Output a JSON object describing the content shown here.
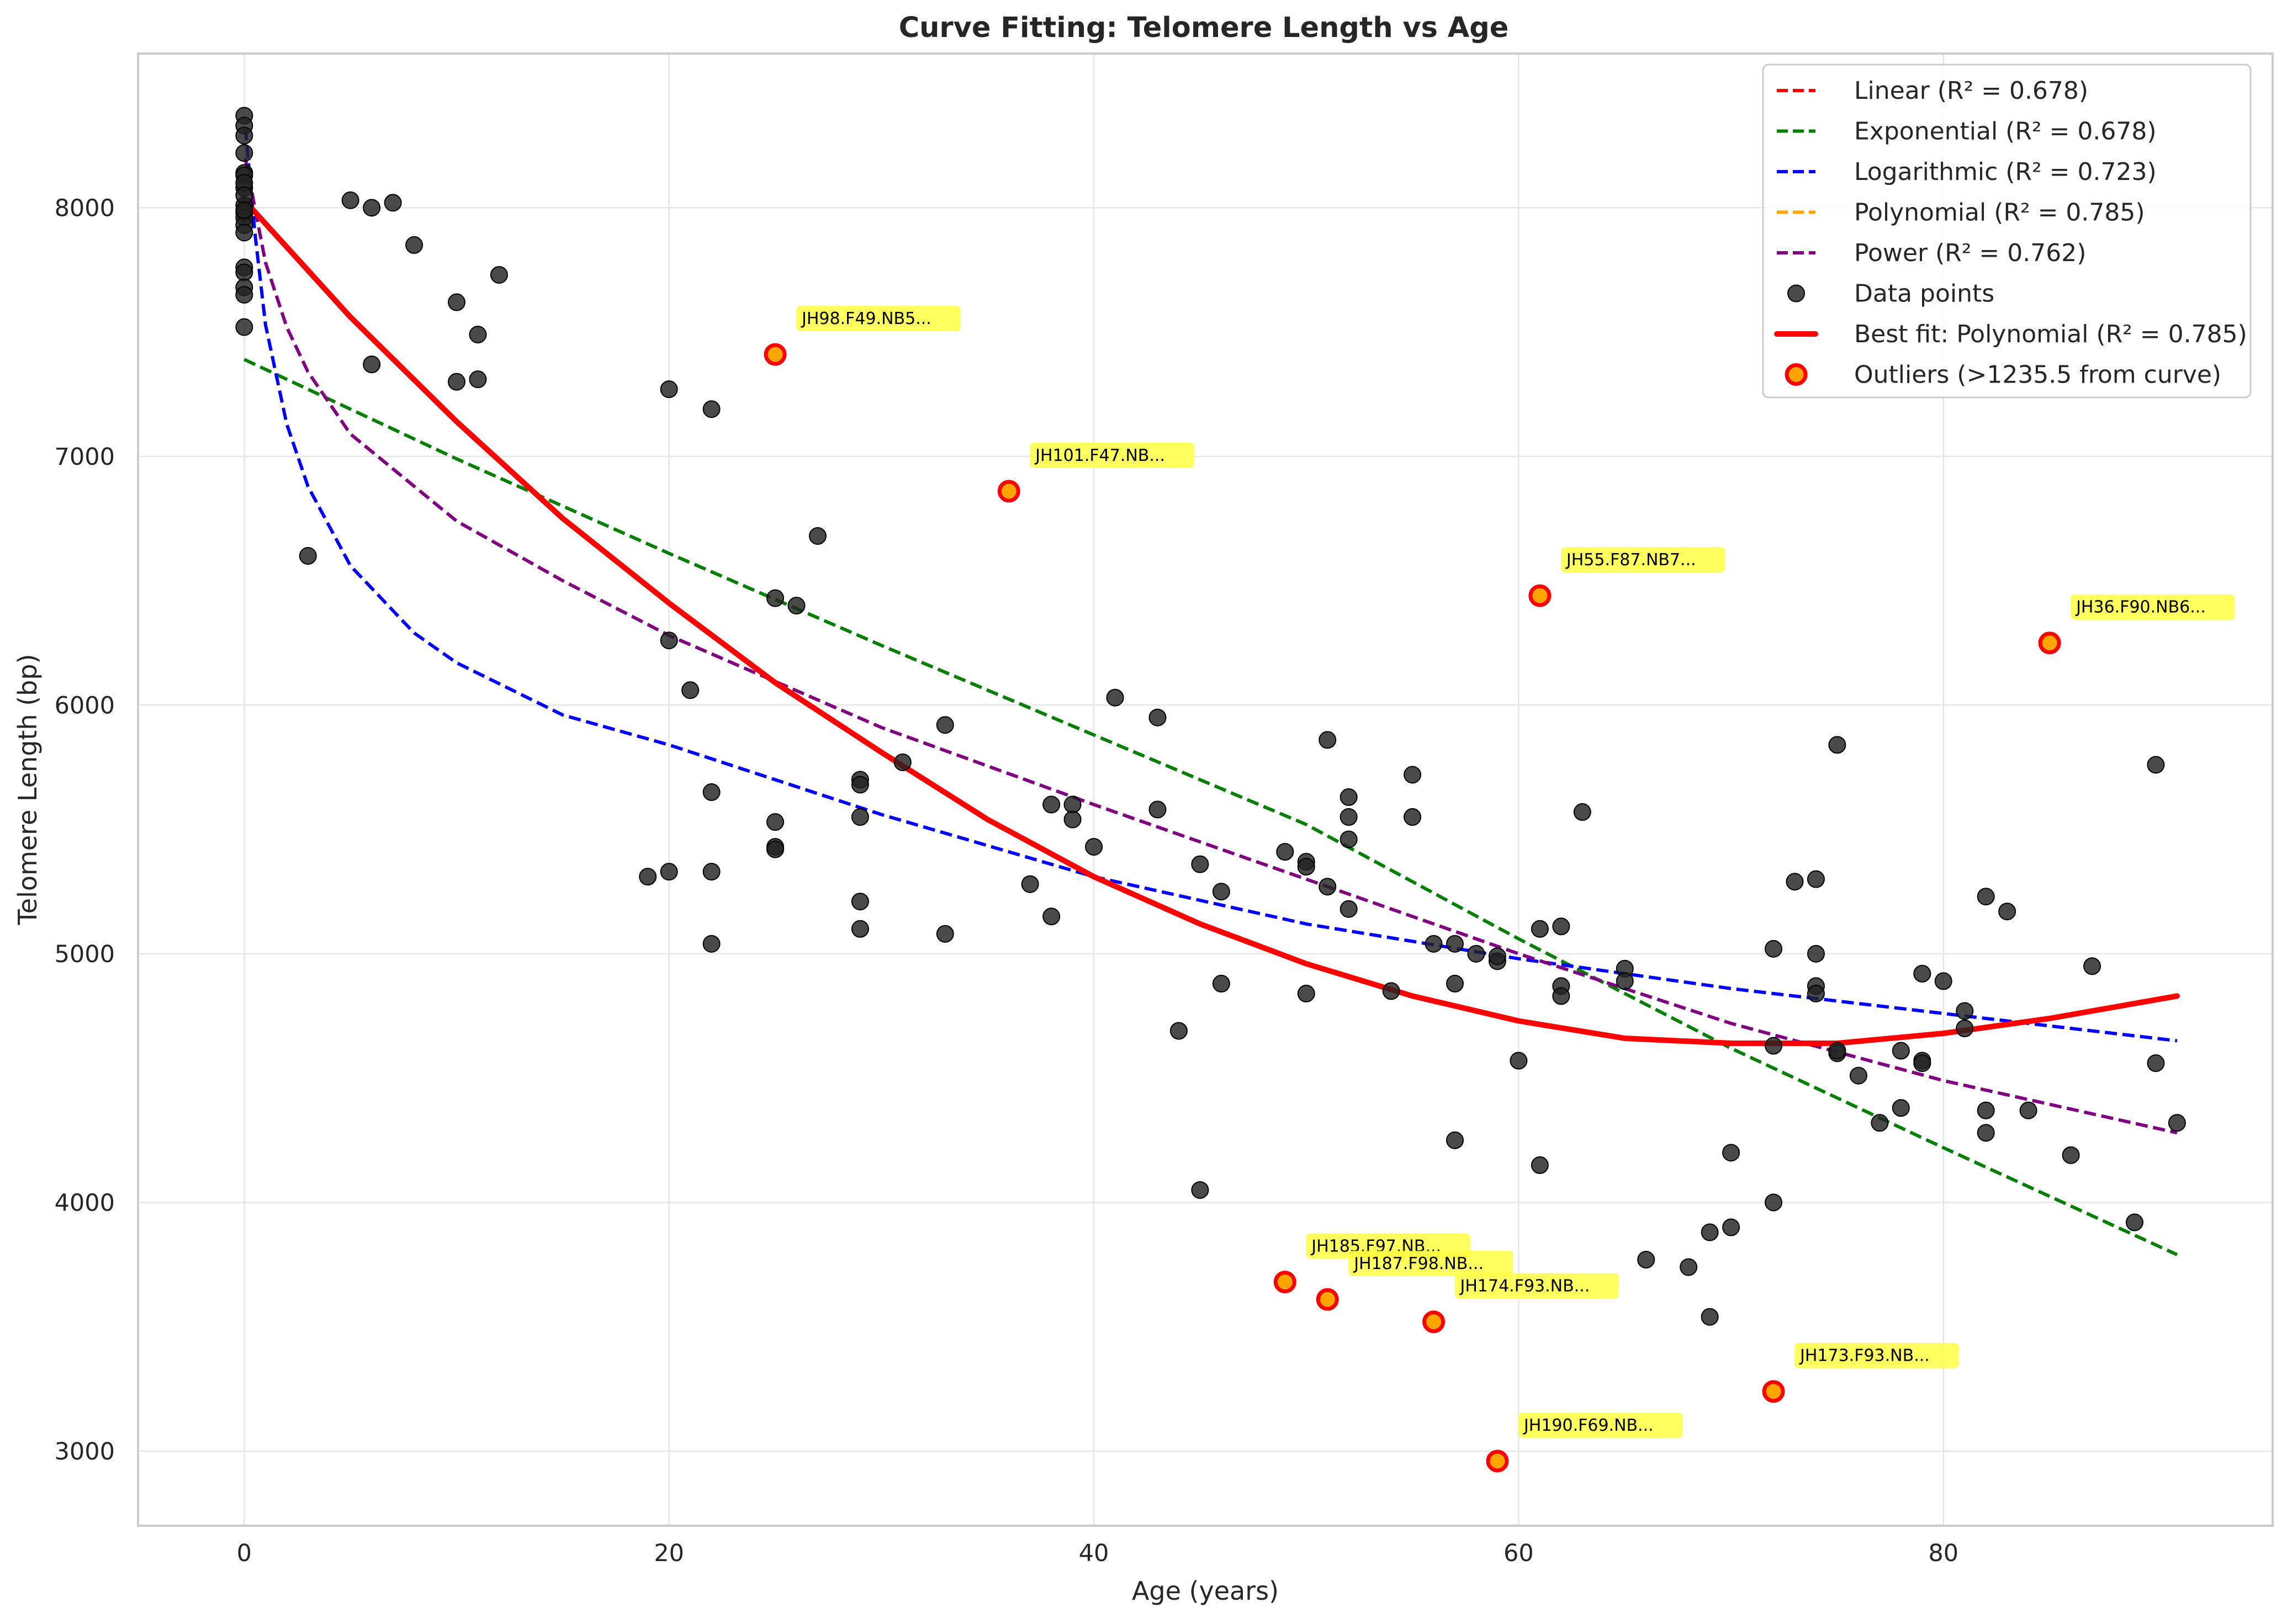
{
  "chart_data": {
    "type": "scatter",
    "title": "Curve Fitting: Telomere Length vs Age",
    "xlabel": "Age (years)",
    "ylabel": "Telomere Length (bp)",
    "xlim": [
      -5,
      95.5
    ],
    "ylim": [
      2700,
      8620
    ],
    "xticks": [
      0,
      20,
      40,
      60,
      80
    ],
    "yticks": [
      3000,
      4000,
      5000,
      6000,
      7000,
      8000
    ],
    "grid": true,
    "legend_position": "top-right",
    "colors": {
      "linear": "#ff0000",
      "exponential": "#007f00",
      "logarithmic": "#0000ff",
      "polynomial": "#ffa500",
      "power": "#800080",
      "best_fit": "#ff0000",
      "points": "#222222",
      "outlier_fill": "#ffa500",
      "outlier_edge": "#ff0000",
      "annotation_bg": "#ffff44"
    },
    "legend": [
      {
        "label": "Linear (R² = 0.678)",
        "style": "dashed",
        "color": "#ff0000"
      },
      {
        "label": "Exponential (R² = 0.678)",
        "style": "dashed",
        "color": "#007f00"
      },
      {
        "label": "Logarithmic (R² = 0.723)",
        "style": "dashed",
        "color": "#0000ff"
      },
      {
        "label": "Polynomial (R² = 0.785)",
        "style": "dashed",
        "color": "#ffa500"
      },
      {
        "label": "Power (R² = 0.762)",
        "style": "dashed",
        "color": "#800080"
      },
      {
        "label": "Data points",
        "style": "marker",
        "color": "#222222"
      },
      {
        "label": "Best fit: Polynomial (R² = 0.785)",
        "style": "solid",
        "color": "#ff0000"
      },
      {
        "label": "Outliers (>1235.5 from curve)",
        "style": "outlier",
        "color": "#ffa500"
      }
    ],
    "curves": [
      {
        "name": "Exponential",
        "style": "dashed",
        "color": "#007f00",
        "x": [
          0,
          10,
          20,
          30,
          40,
          50,
          60,
          70,
          80,
          91
        ],
        "y": [
          7390,
          6990,
          6610,
          6240,
          5880,
          5520,
          5060,
          4620,
          4220,
          3790
        ]
      },
      {
        "name": "Logarithmic",
        "style": "dashed",
        "color": "#0000ff",
        "x": [
          0.05,
          0.5,
          1,
          2,
          3,
          5,
          8,
          10,
          15,
          20,
          25,
          30,
          40,
          50,
          60,
          70,
          80,
          91
        ],
        "y": [
          8320,
          7900,
          7530,
          7130,
          6880,
          6560,
          6290,
          6170,
          5960,
          5840,
          5700,
          5560,
          5310,
          5120,
          4980,
          4860,
          4760,
          4650
        ]
      },
      {
        "name": "Power",
        "style": "dashed",
        "color": "#800080",
        "x": [
          0.05,
          0.5,
          1,
          2,
          3,
          5,
          10,
          15,
          20,
          30,
          40,
          50,
          60,
          70,
          80,
          91
        ],
        "y": [
          8200,
          8000,
          7780,
          7520,
          7340,
          7090,
          6740,
          6500,
          6280,
          5910,
          5600,
          5300,
          5000,
          4720,
          4490,
          4280
        ]
      },
      {
        "name": "Best fit: Polynomial",
        "style": "solid",
        "color": "#ff0000",
        "x": [
          0,
          5,
          10,
          15,
          20,
          25,
          30,
          35,
          40,
          45,
          50,
          55,
          60,
          65,
          70,
          75,
          80,
          85,
          91
        ],
        "y": [
          8030,
          7560,
          7140,
          6750,
          6410,
          6090,
          5810,
          5540,
          5310,
          5120,
          4960,
          4830,
          4730,
          4660,
          4640,
          4640,
          4680,
          4740,
          4830
        ]
      }
    ],
    "points": {
      "x": [
        0,
        0,
        0,
        0,
        0,
        0,
        0,
        0,
        0,
        0,
        0,
        0,
        0,
        0,
        0,
        0,
        0,
        0,
        0,
        0,
        3,
        5,
        6,
        6,
        7,
        8,
        10,
        10,
        11,
        11,
        12,
        19,
        20,
        20,
        20,
        21,
        22,
        22,
        22,
        22,
        25,
        25,
        25,
        25,
        26,
        27,
        29,
        29,
        29,
        29,
        29,
        31,
        33,
        33,
        37,
        38,
        38,
        39,
        39,
        40,
        41,
        43,
        43,
        44,
        45,
        45,
        46,
        46,
        49,
        50,
        50,
        50,
        51,
        51,
        52,
        52,
        52,
        52,
        54,
        55,
        55,
        56,
        57,
        57,
        57,
        58,
        59,
        59,
        60,
        61,
        61,
        62,
        62,
        62,
        63,
        65,
        65,
        66,
        68,
        69,
        69,
        70,
        70,
        72,
        72,
        72,
        73,
        74,
        74,
        74,
        74,
        75,
        75,
        75,
        76,
        77,
        78,
        78,
        79,
        79,
        79,
        80,
        81,
        81,
        82,
        82,
        82,
        83,
        84,
        86,
        87,
        89,
        90,
        90,
        91
      ],
      "y": [
        8370,
        8330,
        8290,
        8220,
        8140,
        8130,
        8080,
        8010,
        7980,
        7960,
        7930,
        7900,
        7760,
        7740,
        7680,
        7650,
        7520,
        8100,
        8050,
        7990,
        6600,
        8030,
        8000,
        7370,
        8020,
        7850,
        7620,
        7300,
        7490,
        7310,
        7730,
        5310,
        7270,
        6260,
        5330,
        6060,
        7190,
        5650,
        5330,
        5040,
        6430,
        5530,
        5430,
        5420,
        6400,
        6680,
        5700,
        5680,
        5550,
        5210,
        5100,
        5770,
        5920,
        5080,
        5280,
        5600,
        5150,
        5600,
        5540,
        5430,
        6030,
        5950,
        5580,
        4690,
        5360,
        4050,
        5250,
        4880,
        5410,
        5370,
        5350,
        4840,
        5860,
        5270,
        5630,
        5550,
        5460,
        5180,
        4850,
        5720,
        5550,
        5040,
        5040,
        4880,
        4250,
        5000,
        4970,
        4990,
        4570,
        5100,
        4150,
        5110,
        4870,
        4830,
        5570,
        4940,
        4890,
        3770,
        3740,
        3880,
        3540,
        4200,
        3900,
        5020,
        4630,
        4000,
        5290,
        5300,
        5000,
        4870,
        4840,
        5840,
        4600,
        4610,
        4510,
        4320,
        4610,
        4380,
        4920,
        4570,
        4560,
        4890,
        4770,
        4700,
        5230,
        4370,
        4280,
        5170,
        4370,
        4190,
        4950,
        3920,
        5760,
        4560,
        4320
      ]
    },
    "outliers": [
      {
        "label": "JH98.F49.NB5...",
        "x": 25,
        "y": 7410
      },
      {
        "label": "JH101.F47.NB...",
        "x": 36,
        "y": 6860
      },
      {
        "label": "JH55.F87.NB7...",
        "x": 61,
        "y": 6440
      },
      {
        "label": "JH36.F90.NB6...",
        "x": 85,
        "y": 6250
      },
      {
        "label": "JH185.F97.NB...",
        "x": 49,
        "y": 3680
      },
      {
        "label": "JH187.F98.NB...",
        "x": 51,
        "y": 3610
      },
      {
        "label": "JH174.F93.NB...",
        "x": 56,
        "y": 3520
      },
      {
        "label": "JH173.F93.NB...",
        "x": 72,
        "y": 3240
      },
      {
        "label": "JH190.F69.NB...",
        "x": 59,
        "y": 2960
      }
    ]
  }
}
